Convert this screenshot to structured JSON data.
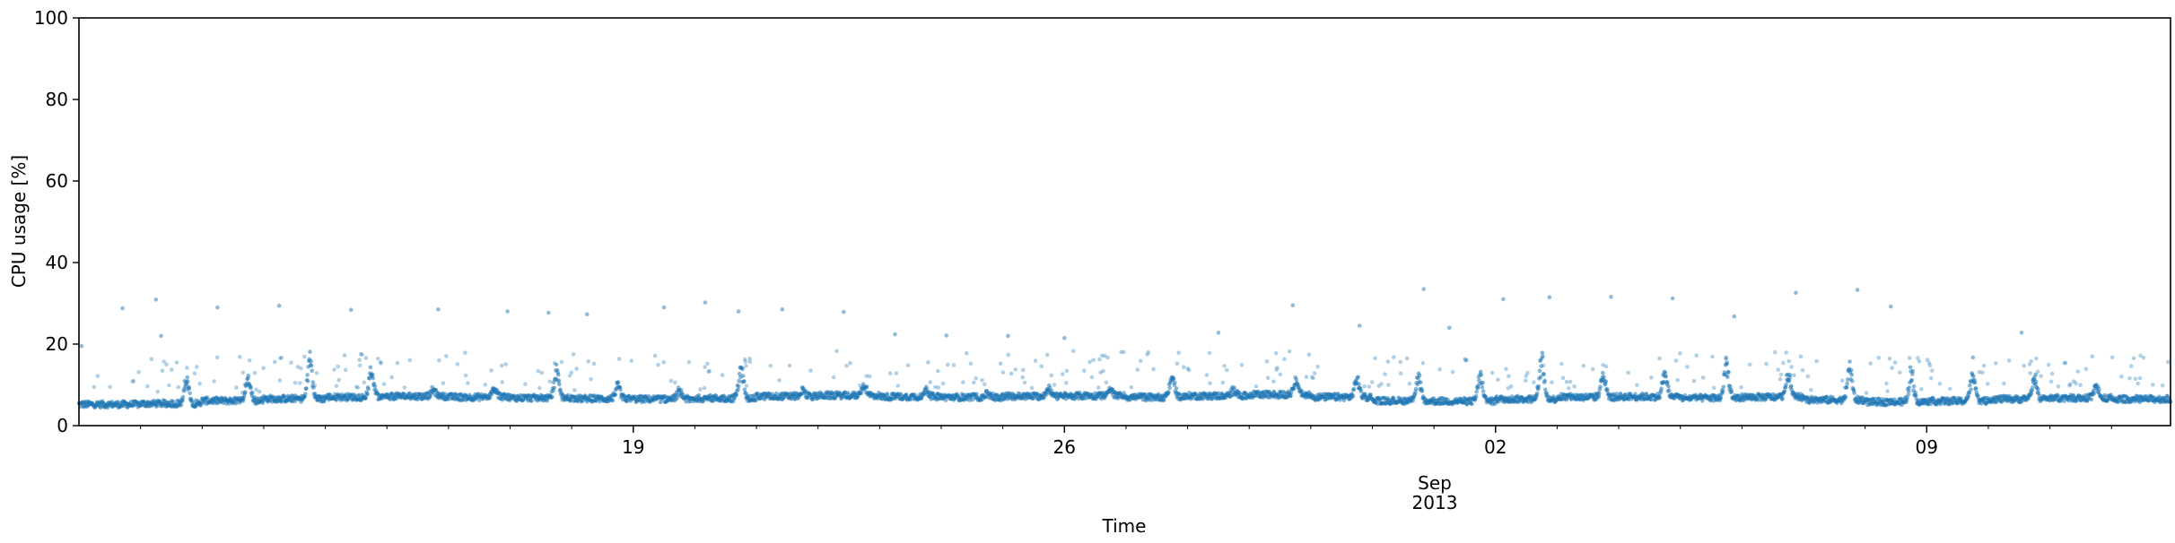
{
  "chart_data": {
    "type": "scatter",
    "title": "",
    "xlabel": "Time",
    "ylabel": "CPU usage [%]",
    "ylim": [
      0,
      100
    ],
    "xlim": [
      "2013-08-10T00:00",
      "2013-09-12T23:00"
    ],
    "yticks": [
      0,
      20,
      40,
      60,
      80,
      100
    ],
    "xticks": [
      {
        "date": "2013-08-19",
        "label": "19"
      },
      {
        "date": "2013-08-26",
        "label": "26"
      },
      {
        "date": "2013-09-02",
        "label": "02"
      },
      {
        "date": "2013-09-09",
        "label": "09"
      }
    ],
    "month_label": "Sep",
    "year_label": "2013",
    "grid": false,
    "marker_color": "#1f77b4",
    "series": [
      {
        "values_note_free": true,
        "baseline_by_day": [
          5.2,
          5.4,
          6.1,
          6.6,
          7.0,
          7.2,
          7.0,
          6.8,
          6.6,
          6.5,
          6.7,
          7.2,
          7.4,
          7.1,
          7.0,
          7.2,
          7.3,
          7.0,
          7.3,
          7.6,
          7.0,
          6.1,
          6.0,
          6.5,
          7.0,
          7.1,
          6.8,
          7.0,
          6.3,
          5.8,
          6.0,
          6.5,
          6.8,
          6.5
        ],
        "daily_peaks": [
          {
            "date": "2013-08-11",
            "value": 12
          },
          {
            "date": "2013-08-12",
            "value": 13
          },
          {
            "date": "2013-08-13",
            "value": 17
          },
          {
            "date": "2013-08-14",
            "value": 14
          },
          {
            "date": "2013-08-15",
            "value": 9
          },
          {
            "date": "2013-08-16",
            "value": 9
          },
          {
            "date": "2013-08-17",
            "value": 14
          },
          {
            "date": "2013-08-18",
            "value": 10
          },
          {
            "date": "2013-08-19",
            "value": 9
          },
          {
            "date": "2013-08-20",
            "value": 15
          },
          {
            "date": "2013-08-21",
            "value": 9
          },
          {
            "date": "2013-08-22",
            "value": 10
          },
          {
            "date": "2013-08-23",
            "value": 9
          },
          {
            "date": "2013-08-24",
            "value": 8
          },
          {
            "date": "2013-08-25",
            "value": 9
          },
          {
            "date": "2013-08-26",
            "value": 9
          },
          {
            "date": "2013-08-27",
            "value": 13
          },
          {
            "date": "2013-08-28",
            "value": 9
          },
          {
            "date": "2013-08-29",
            "value": 12
          },
          {
            "date": "2013-08-30",
            "value": 12
          },
          {
            "date": "2013-08-31",
            "value": 12
          },
          {
            "date": "2013-09-01",
            "value": 13
          },
          {
            "date": "2013-09-02",
            "value": 17
          },
          {
            "date": "2013-09-03",
            "value": 14
          },
          {
            "date": "2013-09-04",
            "value": 13
          },
          {
            "date": "2013-09-05",
            "value": 16
          },
          {
            "date": "2013-09-06",
            "value": 14
          },
          {
            "date": "2013-09-07",
            "value": 15
          },
          {
            "date": "2013-09-08",
            "value": 14
          },
          {
            "date": "2013-09-09",
            "value": 14
          },
          {
            "date": "2013-09-10",
            "value": 12
          },
          {
            "date": "2013-09-11",
            "value": 10
          }
        ],
        "outliers": [
          {
            "date": "2013-08-10T01:00",
            "value": 19.5
          },
          {
            "date": "2013-08-10T17:00",
            "value": 28.8
          },
          {
            "date": "2013-08-11T06:00",
            "value": 30.9
          },
          {
            "date": "2013-08-11T08:00",
            "value": 22
          },
          {
            "date": "2013-08-12T06:00",
            "value": 29.0
          },
          {
            "date": "2013-08-13T06:00",
            "value": 29.4
          },
          {
            "date": "2013-08-14T10:00",
            "value": 28.4
          },
          {
            "date": "2013-08-15T20:00",
            "value": 28.5
          },
          {
            "date": "2013-08-16T23:00",
            "value": 28.0
          },
          {
            "date": "2013-08-17T15:00",
            "value": 27.7
          },
          {
            "date": "2013-08-18T06:00",
            "value": 27.3
          },
          {
            "date": "2013-08-19T12:00",
            "value": 29.0
          },
          {
            "date": "2013-08-20T04:00",
            "value": 30.2
          },
          {
            "date": "2013-08-20T17:00",
            "value": 28.0
          },
          {
            "date": "2013-08-21T10:00",
            "value": 28.5
          },
          {
            "date": "2013-08-22T10:00",
            "value": 27.9
          },
          {
            "date": "2013-08-23T06:00",
            "value": 22.4
          },
          {
            "date": "2013-08-24T02:00",
            "value": 22.1
          },
          {
            "date": "2013-08-25T02:00",
            "value": 22.0
          },
          {
            "date": "2013-08-26T00:00",
            "value": 21.5
          },
          {
            "date": "2013-08-28T12:00",
            "value": 22.8
          },
          {
            "date": "2013-08-29T17:00",
            "value": 29.5
          },
          {
            "date": "2013-08-30T19:00",
            "value": 24.5
          },
          {
            "date": "2013-08-31T20:00",
            "value": 33.5
          },
          {
            "date": "2013-09-01T06:00",
            "value": 24.0
          },
          {
            "date": "2013-09-02T03:00",
            "value": 31.0
          },
          {
            "date": "2013-09-02T21:00",
            "value": 31.5
          },
          {
            "date": "2013-09-03T21:00",
            "value": 31.6
          },
          {
            "date": "2013-09-04T21:00",
            "value": 31.2
          },
          {
            "date": "2013-09-05T21:00",
            "value": 26.8
          },
          {
            "date": "2013-09-06T21:00",
            "value": 32.6
          },
          {
            "date": "2013-09-07T21:00",
            "value": 33.3
          },
          {
            "date": "2013-09-08T10:00",
            "value": 29.2
          },
          {
            "date": "2013-09-09T18:00",
            "value": 16.7
          },
          {
            "date": "2013-09-10T13:00",
            "value": 22.8
          }
        ]
      }
    ]
  }
}
